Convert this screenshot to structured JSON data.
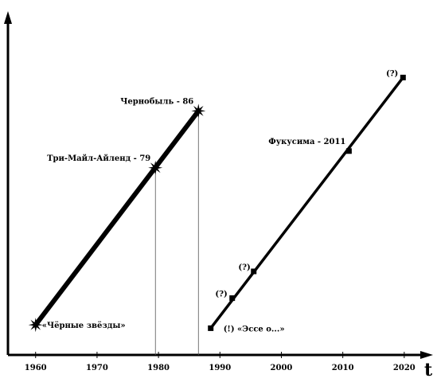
{
  "chart_data": {
    "type": "line",
    "xlabel": "t",
    "ylabel": "",
    "xlim": [
      1955.5,
      2023
    ],
    "ylim": [
      0,
      100
    ],
    "xticks": [
      1960,
      1970,
      1980,
      1990,
      2000,
      2010,
      2020
    ],
    "grid": false,
    "series": [
      {
        "points": [
          {
            "x": 1960,
            "y": 9,
            "marker": "star",
            "label": "«Чёрные звёзды»",
            "guide": false
          },
          {
            "x": 1979.5,
            "y": 56,
            "marker": "star",
            "label": "Три-Майл-Айленд - 79",
            "guide": true
          },
          {
            "x": 1986.5,
            "y": 73,
            "marker": "star",
            "label": "Чернобыль - 86",
            "guide": true
          }
        ]
      },
      {
        "points": [
          {
            "x": 1988.5,
            "y": 8,
            "marker": "square",
            "label": "(!) «Эссе о...»"
          },
          {
            "x": 1992,
            "y": 17,
            "marker": "square",
            "label": "(?)"
          },
          {
            "x": 1995.5,
            "y": 25,
            "marker": "square",
            "label": "(?)"
          },
          {
            "x": 2011,
            "y": 61,
            "marker": "square",
            "label": "Фукусима - 2011"
          },
          {
            "x": 2019.8,
            "y": 83,
            "marker": "square",
            "label": "(?)"
          }
        ]
      }
    ]
  }
}
